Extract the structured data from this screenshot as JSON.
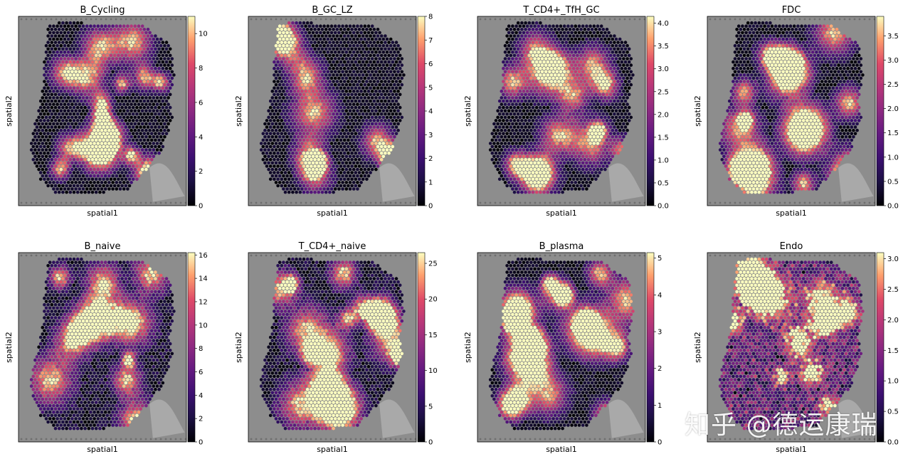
{
  "chart_data": [
    {
      "type": "heatmap",
      "title": "B_Cycling",
      "xlabel": "spatial1",
      "ylabel": "spatial2",
      "colormap": "magma",
      "colorbar_range": [
        0,
        11
      ],
      "colorbar_ticks": [
        "0",
        "2",
        "4",
        "6",
        "8",
        "10"
      ]
    },
    {
      "type": "heatmap",
      "title": "B_GC_LZ",
      "xlabel": "spatial1",
      "ylabel": "spatial2",
      "colormap": "magma",
      "colorbar_range": [
        0,
        8
      ],
      "colorbar_ticks": [
        "0",
        "1",
        "2",
        "3",
        "4",
        "5",
        "6",
        "7",
        "8"
      ]
    },
    {
      "type": "heatmap",
      "title": "T_CD4+_TfH_GC",
      "xlabel": "spatial1",
      "ylabel": "spatial2",
      "colormap": "magma",
      "colorbar_range": [
        0,
        4.15
      ],
      "colorbar_ticks": [
        "0.0",
        "0.5",
        "1.0",
        "1.5",
        "2.0",
        "2.5",
        "3.0",
        "3.5",
        "4.0"
      ]
    },
    {
      "type": "heatmap",
      "title": "FDC",
      "xlabel": "spatial1",
      "ylabel": "spatial2",
      "colormap": "magma",
      "colorbar_range": [
        0,
        3.9
      ],
      "colorbar_ticks": [
        "0.0",
        "0.5",
        "1.0",
        "1.5",
        "2.0",
        "2.5",
        "3.0",
        "3.5"
      ]
    },
    {
      "type": "heatmap",
      "title": "B_naive",
      "xlabel": "spatial1",
      "ylabel": "spatial2",
      "colormap": "magma",
      "colorbar_range": [
        0,
        16.2
      ],
      "colorbar_ticks": [
        "0",
        "2",
        "4",
        "6",
        "8",
        "10",
        "12",
        "14",
        "16"
      ]
    },
    {
      "type": "heatmap",
      "title": "T_CD4+_naive",
      "xlabel": "spatial1",
      "ylabel": "spatial2",
      "colormap": "magma",
      "colorbar_range": [
        0,
        26.5
      ],
      "colorbar_ticks": [
        "0",
        "5",
        "10",
        "15",
        "20",
        "25"
      ]
    },
    {
      "type": "heatmap",
      "title": "B_plasma",
      "xlabel": "spatial1",
      "ylabel": "spatial2",
      "colormap": "magma",
      "colorbar_range": [
        0,
        5.15
      ],
      "colorbar_ticks": [
        "0",
        "1",
        "2",
        "3",
        "4",
        "5"
      ]
    },
    {
      "type": "heatmap",
      "title": "Endo",
      "xlabel": "spatial1",
      "ylabel": "spatial2",
      "colormap": "magma",
      "colorbar_range": [
        0,
        3.1
      ],
      "colorbar_ticks": [
        "0.0",
        "0.5",
        "1.0",
        "1.5",
        "2.0",
        "2.5",
        "3.0"
      ]
    }
  ],
  "watermark": "知乎 @德运康瑞",
  "colors": {
    "tissue_background": "#8d8d8d",
    "axes_edge": "#000000"
  }
}
